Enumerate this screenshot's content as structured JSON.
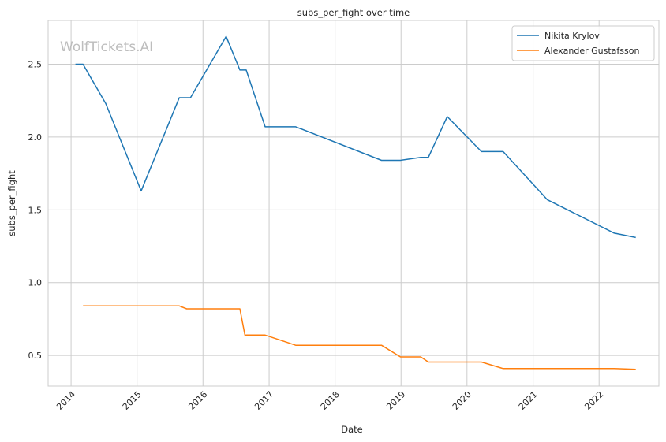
{
  "chart_data": {
    "type": "line",
    "title": "subs_per_fight over time",
    "xlabel": "Date",
    "ylabel": "subs_per_fight",
    "watermark": "WolfTickets.AI",
    "x_ticks": [
      "2014",
      "2015",
      "2016",
      "2017",
      "2018",
      "2019",
      "2020",
      "2021",
      "2022"
    ],
    "y_ticks": [
      "0.5",
      "1.0",
      "1.5",
      "2.0",
      "2.5"
    ],
    "xlim": [
      "2013-08-27",
      "2022-11-28"
    ],
    "ylim": [
      0.29,
      2.8
    ],
    "grid": true,
    "legend_position": "top-right",
    "series": [
      {
        "name": "Nikita Krylov",
        "color": "#1f77b4",
        "points": [
          [
            "2014-01-25",
            2.5
          ],
          [
            "2014-03-08",
            2.5
          ],
          [
            "2014-07-12",
            2.23
          ],
          [
            "2015-01-24",
            1.63
          ],
          [
            "2015-08-23",
            2.27
          ],
          [
            "2015-10-24",
            2.27
          ],
          [
            "2016-05-08",
            2.69
          ],
          [
            "2016-07-23",
            2.46
          ],
          [
            "2016-08-27",
            2.46
          ],
          [
            "2016-12-10",
            2.07
          ],
          [
            "2017-05-28",
            2.07
          ],
          [
            "2018-09-15",
            1.84
          ],
          [
            "2018-12-29",
            1.84
          ],
          [
            "2019-04-20",
            1.86
          ],
          [
            "2019-06-01",
            1.86
          ],
          [
            "2019-09-14",
            2.14
          ],
          [
            "2020-03-21",
            1.9
          ],
          [
            "2020-07-19",
            1.9
          ],
          [
            "2021-03-20",
            1.57
          ],
          [
            "2022-03-26",
            1.34
          ],
          [
            "2022-07-23",
            1.31
          ]
        ]
      },
      {
        "name": "Alexander Gustafsson",
        "color": "#ff7f0e",
        "points": [
          [
            "2014-03-08",
            0.84
          ],
          [
            "2015-08-23",
            0.84
          ],
          [
            "2015-10-03",
            0.82
          ],
          [
            "2016-07-23",
            0.82
          ],
          [
            "2016-08-20",
            0.64
          ],
          [
            "2016-12-10",
            0.64
          ],
          [
            "2017-05-28",
            0.57
          ],
          [
            "2018-09-15",
            0.57
          ],
          [
            "2018-12-29",
            0.49
          ],
          [
            "2019-04-20",
            0.49
          ],
          [
            "2019-06-01",
            0.455
          ],
          [
            "2020-03-21",
            0.455
          ],
          [
            "2020-07-19",
            0.41
          ],
          [
            "2022-03-26",
            0.41
          ],
          [
            "2022-07-23",
            0.405
          ]
        ]
      }
    ]
  }
}
